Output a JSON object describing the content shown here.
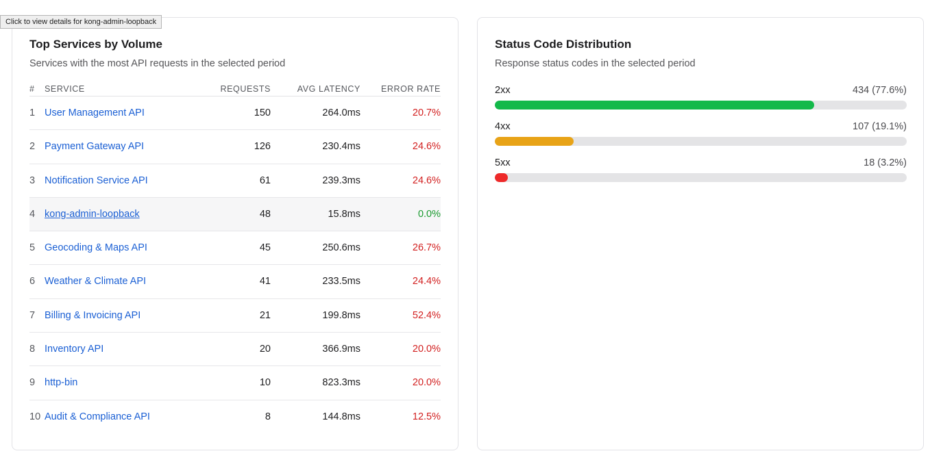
{
  "tooltip": "Click to view details for kong-admin-loopback",
  "top_services": {
    "title": "Top Services by Volume",
    "subtitle": "Services with the most API requests in the selected period",
    "columns": {
      "num": "#",
      "service": "SERVICE",
      "requests": "REQUESTS",
      "latency": "AVG LATENCY",
      "error_rate": "ERROR RATE"
    },
    "rows": [
      {
        "num": "1",
        "service": "User Management API",
        "requests": "150",
        "latency": "264.0ms",
        "error_rate": "20.7%",
        "status": "bad"
      },
      {
        "num": "2",
        "service": "Payment Gateway API",
        "requests": "126",
        "latency": "230.4ms",
        "error_rate": "24.6%",
        "status": "bad"
      },
      {
        "num": "3",
        "service": "Notification Service API",
        "requests": "61",
        "latency": "239.3ms",
        "error_rate": "24.6%",
        "status": "bad"
      },
      {
        "num": "4",
        "service": "kong-admin-loopback",
        "requests": "48",
        "latency": "15.8ms",
        "error_rate": "0.0%",
        "status": "good"
      },
      {
        "num": "5",
        "service": "Geocoding & Maps API",
        "requests": "45",
        "latency": "250.6ms",
        "error_rate": "26.7%",
        "status": "bad"
      },
      {
        "num": "6",
        "service": "Weather & Climate API",
        "requests": "41",
        "latency": "233.5ms",
        "error_rate": "24.4%",
        "status": "bad"
      },
      {
        "num": "7",
        "service": "Billing & Invoicing API",
        "requests": "21",
        "latency": "199.8ms",
        "error_rate": "52.4%",
        "status": "bad"
      },
      {
        "num": "8",
        "service": "Inventory API",
        "requests": "20",
        "latency": "366.9ms",
        "error_rate": "20.0%",
        "status": "bad"
      },
      {
        "num": "9",
        "service": "http-bin",
        "requests": "10",
        "latency": "823.3ms",
        "error_rate": "20.0%",
        "status": "bad"
      },
      {
        "num": "10",
        "service": "Audit & Compliance API",
        "requests": "8",
        "latency": "144.8ms",
        "error_rate": "12.5%",
        "status": "bad"
      }
    ]
  },
  "status_codes": {
    "title": "Status Code Distribution",
    "subtitle": "Response status codes in the selected period",
    "items": [
      {
        "code": "2xx",
        "count_label": "434 (77.6%)",
        "percent": 77.6,
        "color": "#14b94a"
      },
      {
        "code": "4xx",
        "count_label": "107 (19.1%)",
        "percent": 19.1,
        "color": "#e8a317"
      },
      {
        "code": "5xx",
        "count_label": "18 (3.2%)",
        "percent": 3.2,
        "color": "#ee2a2a"
      }
    ]
  },
  "colors": {
    "link": "#1a5fd4",
    "error_bad": "#d21f1f",
    "error_good": "#1a9a2f"
  }
}
